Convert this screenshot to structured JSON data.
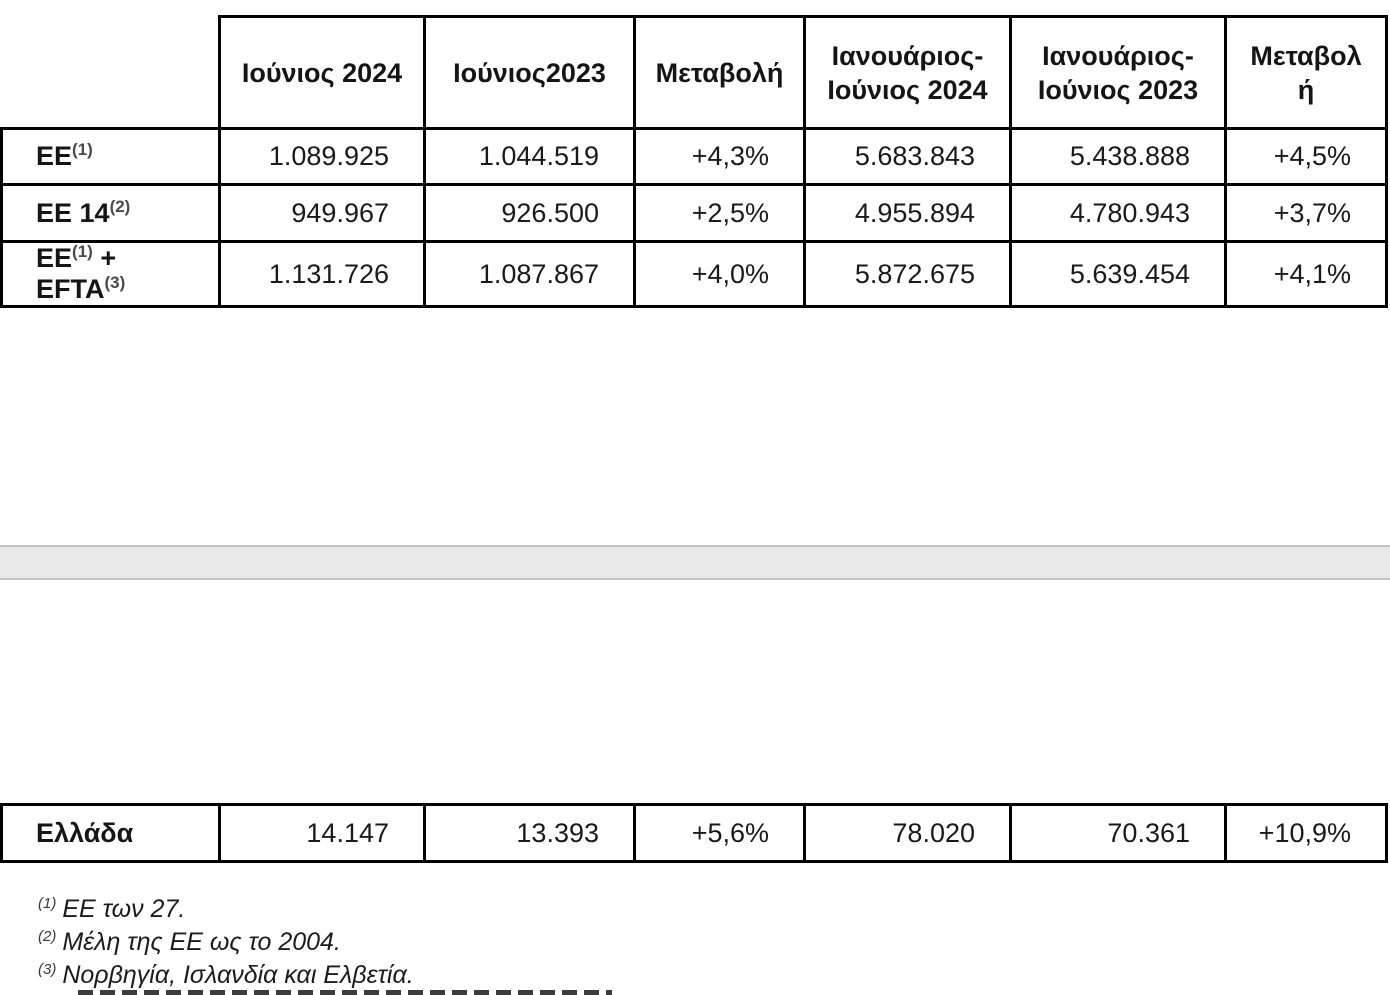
{
  "table": {
    "columns": [
      "Ιούνιος 2024",
      "Ιούνιος2023",
      "Μεταβολή",
      "Ιανουάριος-\nΙούνιος 2024",
      "Ιανουάριος-\nΙούνιος 2023",
      "Μεταβολ\nή"
    ],
    "rows": [
      {
        "label": "ΕΕ^(1)",
        "values": [
          "1.089.925",
          "1.044.519",
          "+4,3%",
          "5.683.843",
          "5.438.888",
          "+4,5%"
        ]
      },
      {
        "label": "ΕΕ 14^(2)",
        "values": [
          "949.967",
          "926.500",
          "+2,5%",
          "4.955.894",
          "4.780.943",
          "+3,7%"
        ]
      },
      {
        "label": "ΕΕ^(1) +\nEFTA^(3)",
        "values": [
          "1.131.726",
          "1.087.867",
          "+4,0%",
          "5.872.675",
          "5.639.454",
          "+4,1%"
        ]
      }
    ]
  },
  "greece_table": {
    "rows": [
      {
        "label": "Ελλάδα",
        "values": [
          "14.147",
          "13.393",
          "+5,6%",
          "78.020",
          "70.361",
          "+10,9%"
        ]
      }
    ]
  },
  "footnotes": [
    {
      "marker": "(1)",
      "text": "ΕΕ των 27."
    },
    {
      "marker": "(2)",
      "text": "Μέλη της ΕΕ ως το 2004."
    },
    {
      "marker": "(3)",
      "text": "Νορβηγία, Ισλανδία και Ελβετία."
    }
  ]
}
